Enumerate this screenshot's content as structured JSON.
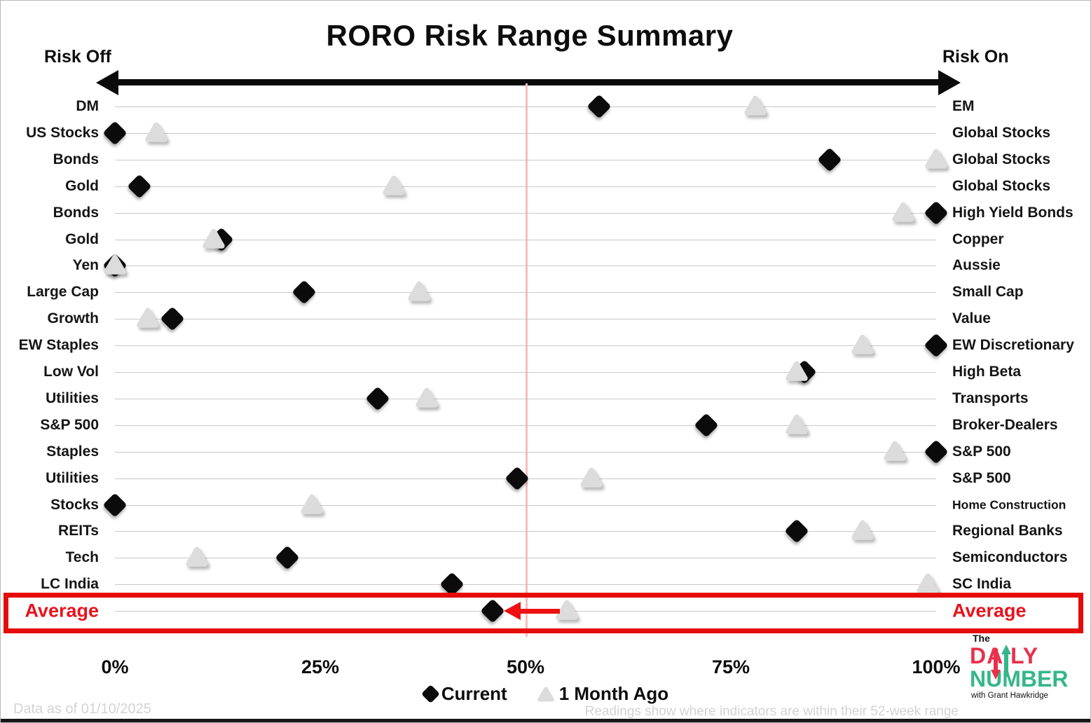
{
  "header": {
    "title": "RORO Risk Range Summary",
    "left_label": "Risk Off",
    "right_label": "Risk On"
  },
  "chart_data": {
    "type": "scatter",
    "title": "RORO Risk Range Summary",
    "x_unit": "percent of 52-week range",
    "x_range": [
      0,
      100
    ],
    "x_ticks": [
      {
        "label": "0%",
        "value": 0
      },
      {
        "label": "25%",
        "value": 25
      },
      {
        "label": "50%",
        "value": 50
      },
      {
        "label": "75%",
        "value": 75
      },
      {
        "label": "100%",
        "value": 100
      }
    ],
    "midline_value": 50,
    "series_names": [
      "Current",
      "1 Month Ago"
    ],
    "rows": [
      {
        "risk_off": "DM",
        "risk_on": "EM",
        "current": 59,
        "month_ago": 78
      },
      {
        "risk_off": "US Stocks",
        "risk_on": "Global Stocks",
        "current": 0,
        "month_ago": 5
      },
      {
        "risk_off": "Bonds",
        "risk_on": "Global Stocks",
        "current": 87,
        "month_ago": 100
      },
      {
        "risk_off": "Gold",
        "risk_on": "Global Stocks",
        "current": 3,
        "month_ago": 34
      },
      {
        "risk_off": "Bonds",
        "risk_on": "High Yield Bonds",
        "current": 100,
        "month_ago": 96
      },
      {
        "risk_off": "Gold",
        "risk_on": "Copper",
        "current": 13,
        "month_ago": 12
      },
      {
        "risk_off": "Yen",
        "risk_on": "Aussie",
        "current": 0,
        "month_ago": 0
      },
      {
        "risk_off": "Large Cap",
        "risk_on": "Small Cap",
        "current": 23,
        "month_ago": 37
      },
      {
        "risk_off": "Growth",
        "risk_on": "Value",
        "current": 7,
        "month_ago": 4
      },
      {
        "risk_off": "EW Staples",
        "risk_on": "EW Discretionary",
        "current": 100,
        "month_ago": 91
      },
      {
        "risk_off": "Low Vol",
        "risk_on": "High Beta",
        "current": 84,
        "month_ago": 83
      },
      {
        "risk_off": "Utilities",
        "risk_on": "Transports",
        "current": 32,
        "month_ago": 38
      },
      {
        "risk_off": "S&P 500",
        "risk_on": "Broker-Dealers",
        "current": 72,
        "month_ago": 83
      },
      {
        "risk_off": "Staples",
        "risk_on": "S&P 500",
        "current": 100,
        "month_ago": 95
      },
      {
        "risk_off": "Utilities",
        "risk_on": "S&P 500",
        "current": 49,
        "month_ago": 58
      },
      {
        "risk_off": "Stocks",
        "risk_on": "Home Construction",
        "current": 0,
        "month_ago": 24
      },
      {
        "risk_off": "REITs",
        "risk_on": "Regional Banks",
        "current": 83,
        "month_ago": 91
      },
      {
        "risk_off": "Tech",
        "risk_on": "Semiconductors",
        "current": 21,
        "month_ago": 10
      },
      {
        "risk_off": "LC India",
        "risk_on": "SC India",
        "current": 41,
        "month_ago": 99
      },
      {
        "risk_off": "Average",
        "risk_on": "Average",
        "current": 46,
        "month_ago": 55,
        "highlight": true
      }
    ],
    "legend_position": "bottom",
    "grid": true
  },
  "legend": {
    "current": "Current",
    "month_ago": "1 Month Ago"
  },
  "footer": {
    "left": "Data as of 01/10/2025",
    "right": "Readings show where indicators are within their 52-week range"
  },
  "logo": {
    "the": "The",
    "daily": "DAILY",
    "number": "NUMBER",
    "tagline": "with Grant Hawkridge"
  },
  "colors": {
    "current_marker": "#0b0b0b",
    "month_ago_marker": "#dcdcdc",
    "highlight_red": "#e60b0b",
    "average_label_red": "#e8131d",
    "midline_pink": "#f8bdbd",
    "footer_gray": "#d3d3d3",
    "logo_red": "#e9304c",
    "logo_green": "#35b789"
  }
}
